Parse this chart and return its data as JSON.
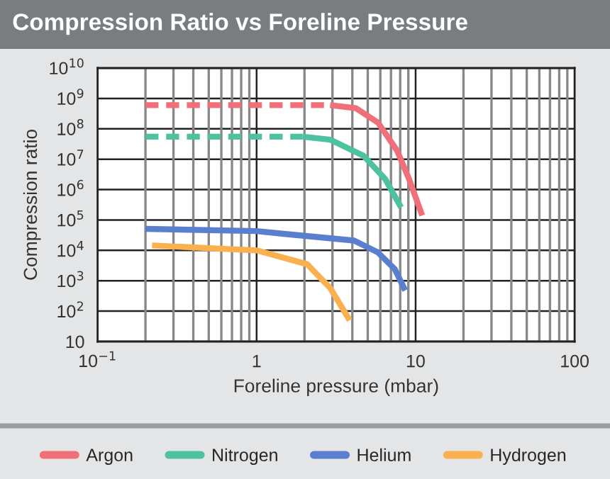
{
  "chart_data": {
    "type": "line",
    "title": "Compression Ratio vs Foreline Pressure",
    "xlabel": "Foreline pressure (mbar)",
    "ylabel": "Compression ratio",
    "log": "xy",
    "grid": true,
    "legend": "bottom",
    "marker": "none",
    "xlim": [
      0.1,
      100
    ],
    "xticks": [
      {
        "value": 0.1,
        "label": "10$^{−1}$"
      },
      1,
      10,
      100
    ],
    "ylim": [
      10,
      10000000000
    ],
    "yticks": [
      10,
      {
        "value": 100,
        "label": "10$^{2}$"
      },
      {
        "value": 1000,
        "label": "10$^{3}$"
      },
      {
        "value": 10000,
        "label": "10$^{4}$"
      },
      {
        "value": 100000,
        "label": "10$^{5}$"
      },
      {
        "value": 1000000,
        "label": "10$^{6}$"
      },
      {
        "value": 10000000,
        "label": "10$^{7}$"
      },
      {
        "value": 100000000,
        "label": "10$^{8}$"
      },
      {
        "value": 1000000000,
        "label": "10$^{9}$"
      },
      {
        "value": 10000000000,
        "label": "10$^{10}$"
      }
    ],
    "series": [
      {
        "name": "Argon",
        "color": "#f0707a",
        "line_style": "solid",
        "x": [
          2.9,
          4.2,
          5.8,
          7.65,
          9.1,
          11
        ],
        "values": [
          600000000,
          480000000,
          160000000,
          19000000,
          2200000,
          140000
        ]
      },
      {
        "name": "Nitrogen",
        "color": "#4dc1a0",
        "line_style": "solid",
        "x": [
          1.95,
          2.9,
          4.7,
          6.45,
          8.1
        ],
        "values": [
          55000000,
          44000000,
          13000000,
          2200000,
          260000
        ]
      },
      {
        "name": "Helium",
        "color": "#5b7fcf",
        "line_style": "solid",
        "x": [
          0.2,
          1,
          1.48,
          4.1,
          5.8,
          7.4,
          8.6
        ],
        "values": [
          51000,
          43000,
          35000,
          21000,
          8500,
          2400,
          480
        ]
      },
      {
        "name": "Hydrogen",
        "color": "#fbb050",
        "line_style": "solid",
        "x": [
          0.22,
          1,
          2.08,
          2.9,
          3.85
        ],
        "values": [
          14500,
          10000,
          3500,
          580,
          50
        ]
      },
      {
        "color": "#f0707a",
        "line_style": "dashed",
        "x": [
          0.2,
          2.9
        ],
        "values": [
          600000000,
          600000000
        ]
      },
      {
        "color": "#4dc1a0",
        "line_style": "dashed",
        "x": [
          0.2,
          1.95
        ],
        "values": [
          55000000,
          55000000
        ]
      }
    ]
  }
}
